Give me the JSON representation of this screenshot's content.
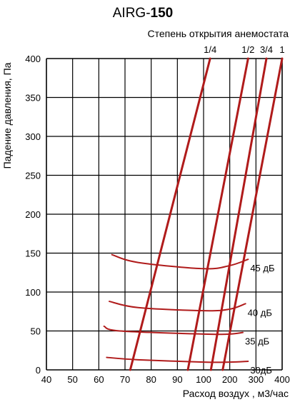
{
  "chart_data": {
    "type": "line",
    "title_prefix": "AIRG-",
    "title_bold": "150",
    "subtitle": "Степень открытия анемостата",
    "xlabel": "Расход воздух , м3/час",
    "ylabel": "Падение давления, Па",
    "x_ticks": [
      "40",
      "50",
      "60",
      "70",
      "80",
      "90",
      "100",
      "200",
      "300",
      "400"
    ],
    "y_ticks": [
      0,
      50,
      100,
      150,
      200,
      250,
      300,
      350,
      400
    ],
    "ylim": [
      0,
      400
    ],
    "grid": true,
    "line_color": "#b01b1b",
    "opening_series": [
      {
        "name": "1/4",
        "points": [
          [
            72,
            0
          ],
          [
            125,
            400
          ]
        ]
      },
      {
        "name": "1/2",
        "points": [
          [
            94,
            0
          ],
          [
            270,
            400
          ]
        ]
      },
      {
        "name": "3/4",
        "points": [
          [
            128,
            0
          ],
          [
            340,
            400
          ]
        ]
      },
      {
        "name": "1",
        "points": [
          [
            173,
            0
          ],
          [
            400,
            400
          ]
        ]
      }
    ],
    "noise_series": [
      {
        "name": "45 дБ",
        "points": [
          [
            65,
            148
          ],
          [
            75,
            138
          ],
          [
            100,
            130
          ],
          [
            200,
            134
          ],
          [
            270,
            142
          ]
        ]
      },
      {
        "name": "40 дБ",
        "points": [
          [
            64,
            88
          ],
          [
            75,
            80
          ],
          [
            100,
            76
          ],
          [
            200,
            78
          ],
          [
            260,
            85
          ]
        ]
      },
      {
        "name": "35 дБ",
        "points": [
          [
            62,
            56
          ],
          [
            68,
            50
          ],
          [
            100,
            46
          ],
          [
            200,
            46
          ],
          [
            250,
            48
          ]
        ]
      },
      {
        "name": "30дБ",
        "points": [
          [
            63,
            16
          ],
          [
            75,
            13
          ],
          [
            100,
            10
          ],
          [
            200,
            10
          ],
          [
            270,
            11
          ]
        ]
      }
    ]
  }
}
